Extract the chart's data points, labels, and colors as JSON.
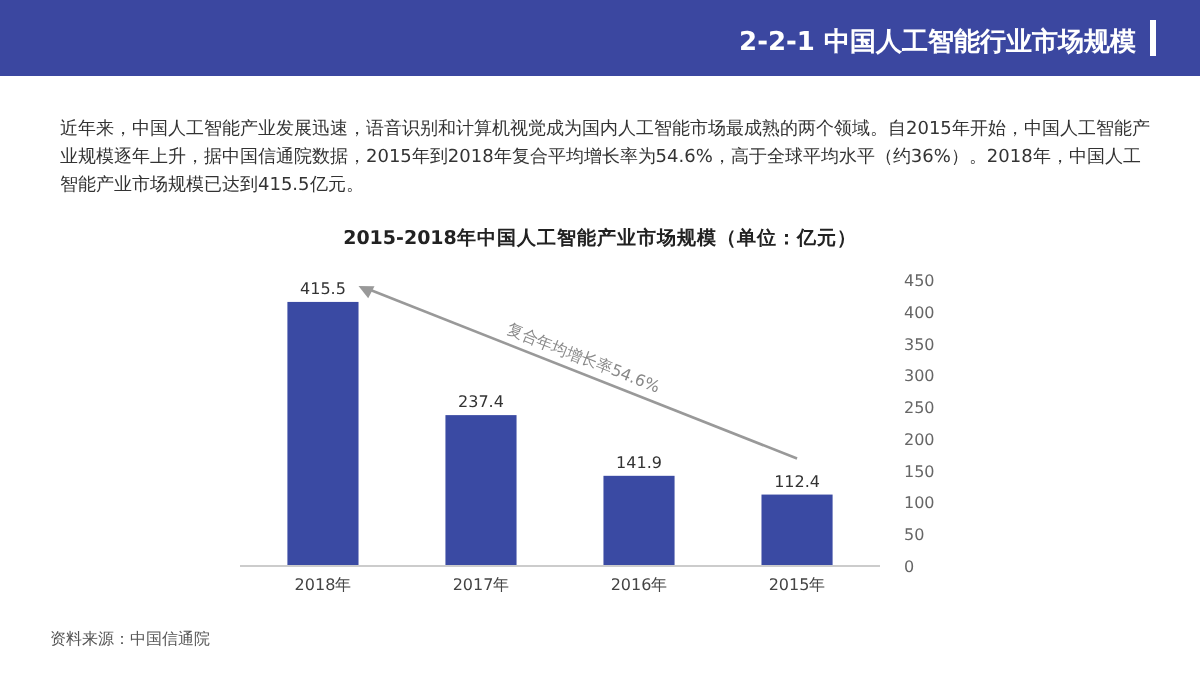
{
  "chart_data": {
    "type": "bar",
    "title": "2-2-1 中国人工智能行业市场规模",
    "subtitle": "2015-2018年中国人工智能产业市场规模（单位：亿元）",
    "annotations": [
      "近年来，中国人工智能产业发展迅速，语音识别和计算机视觉成为国内人工智能市场最成熟的两个领域。自2015年开始，中国人工智能产业规模逐年上升，据中国信通院数据，2015年到2018年复合平均增长率为54.6%，高于全球平均水平（约36%）。2018年，中国人工智能产业市场规模已达到415.5亿元。",
      "复合年均增长率54.6%",
      "资料来源：中国信通院"
    ],
    "categories": [
      "2018年",
      "2017年",
      "2016年",
      "2015年"
    ],
    "values": [
      415.5,
      237.4,
      141.9,
      112.4
    ],
    "color": "#3a4aa3",
    "ylim": [
      0,
      450
    ],
    "yticks": [
      0,
      50,
      100,
      150,
      200,
      250,
      300,
      350,
      400,
      450
    ],
    "data_labels": true,
    "grid": false
  }
}
